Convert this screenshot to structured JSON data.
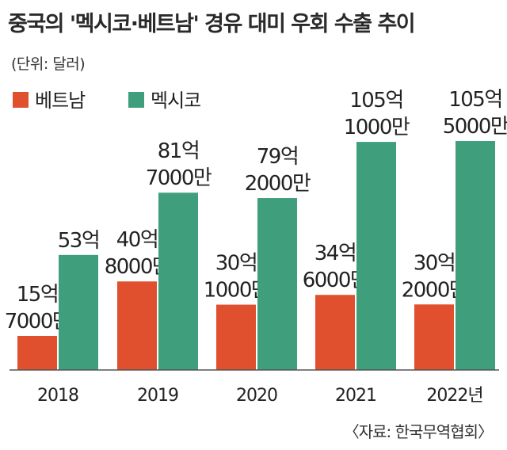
{
  "chart_data": {
    "type": "bar",
    "title": "중국의 '멕시코·베트남' 경유 대미 우회 수출 추이",
    "unit": "(단위: 달러)",
    "source": "〈자료: 한국무역협회〉",
    "categories": [
      "2018",
      "2019",
      "2020",
      "2021",
      "2022년"
    ],
    "series": [
      {
        "name": "베트남",
        "color": "#e0502e",
        "values": [
          1570000000,
          4080000000,
          3010000000,
          3460000000,
          3020000000
        ],
        "labels": [
          [
            "15억",
            "7000만"
          ],
          [
            "40억",
            "8000만"
          ],
          [
            "30억",
            "1000만"
          ],
          [
            "34억",
            "6000만"
          ],
          [
            "30억",
            "2000만"
          ]
        ]
      },
      {
        "name": "멕시코",
        "color": "#3f9f7c",
        "values": [
          5300000000,
          8170000000,
          7920000000,
          10510000000,
          10550000000
        ],
        "labels": [
          [
            "53억"
          ],
          [
            "81억",
            "7000만"
          ],
          [
            "79억",
            "2000만"
          ],
          [
            "105억",
            "1000만"
          ],
          [
            "105억",
            "5000만"
          ]
        ]
      }
    ],
    "ylim": [
      0,
      10550000000
    ],
    "legend": "top-left",
    "grid": false,
    "colors": {
      "baseline": "#555555",
      "text": "#222222"
    }
  }
}
